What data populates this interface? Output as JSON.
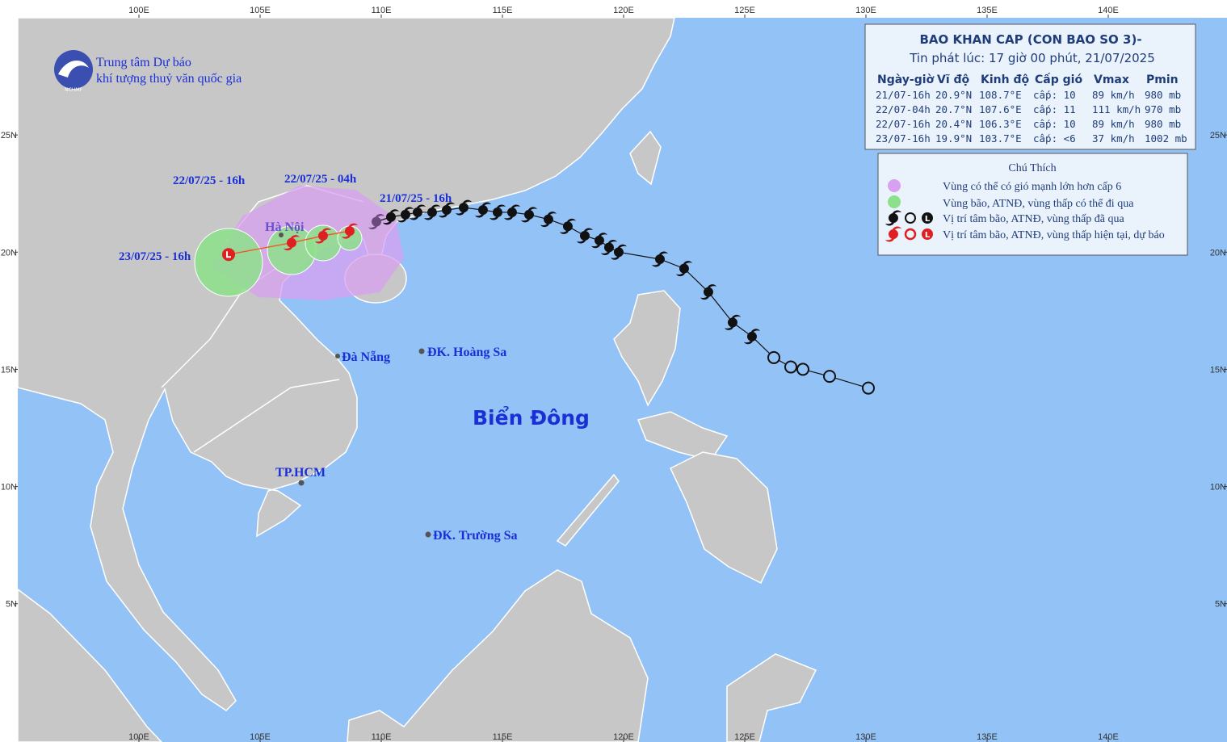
{
  "agency": {
    "name_line1": "Trung tâm Dự báo",
    "name_line2": "khí tượng thuỷ văn quốc gia",
    "logo_text": "NCHMF"
  },
  "header": {
    "title": "BAO KHAN CAP (CON BAO SO 3)-",
    "issued": "Tin phát lúc: 17 giờ 00 phút, 21/07/2025"
  },
  "table": {
    "columns": [
      "Ngày-giờ",
      "Vĩ độ",
      "Kinh độ",
      "Cấp gió",
      "Vmax",
      "Pmin"
    ],
    "rows": [
      [
        "21/07-16h",
        "20.9°N",
        "108.7°E",
        "cấp: 10",
        "89 km/h",
        "980 mb"
      ],
      [
        "22/07-04h",
        "20.7°N",
        "107.6°E",
        "cấp: 11",
        "111 km/h",
        "970 mb"
      ],
      [
        "22/07-16h",
        "20.4°N",
        "106.3°E",
        "cấp: 10",
        "89 km/h",
        "980 mb"
      ],
      [
        "23/07-16h",
        "19.9°N",
        "103.7°E",
        "cấp: <6",
        "37 km/h",
        "1002 mb"
      ]
    ]
  },
  "legend": {
    "title": "Chú Thích",
    "items": [
      "Vùng có thể có gió mạnh lớn hơn cấp 6",
      "Vùng bão, ATNĐ, vùng thấp có thể đi qua",
      "Vị trí tâm bão, ATNĐ, vùng thấp đã qua",
      "Vị trí tâm bão, ATNĐ, vùng thấp hiện tại, dự báo"
    ]
  },
  "map": {
    "xlim": [
      95,
      144.9
    ],
    "ylim": [
      -0.9,
      30
    ],
    "lon_ticks": [
      {
        "value": 100,
        "label": "100E"
      },
      {
        "value": 105,
        "label": "105E"
      },
      {
        "value": 110,
        "label": "110E"
      },
      {
        "value": 115,
        "label": "115E"
      },
      {
        "value": 120,
        "label": "120E"
      },
      {
        "value": 125,
        "label": "125E"
      },
      {
        "value": 130,
        "label": "130E"
      },
      {
        "value": 135,
        "label": "135E"
      },
      {
        "value": 140,
        "label": "140E"
      }
    ],
    "lat_ticks": [
      {
        "value": 5,
        "label": "5N"
      },
      {
        "value": 10,
        "label": "10N"
      },
      {
        "value": 15,
        "label": "15N"
      },
      {
        "value": 20,
        "label": "20N"
      },
      {
        "value": 25,
        "label": "25N"
      }
    ],
    "places": [
      "Hà Nội",
      "Đà Nẵng",
      "ĐK. Hoàng Sa",
      "TP.HCM",
      "ĐK. Trường Sa"
    ],
    "time_labels": [
      "22/07/25 - 16h",
      "22/07/25 - 04h",
      "21/07/25 - 16h",
      "23/07/25 - 16h"
    ],
    "sea_label": "Biển Đông",
    "past_low": [
      [
        130.1,
        14.2
      ],
      [
        128.5,
        14.7
      ],
      [
        127.4,
        15.0
      ],
      [
        126.9,
        15.1
      ],
      [
        126.2,
        15.5
      ]
    ],
    "past_storm": [
      [
        125.3,
        16.4
      ],
      [
        124.5,
        17.0
      ],
      [
        123.5,
        18.3
      ],
      [
        122.5,
        19.3
      ],
      [
        121.5,
        19.7
      ],
      [
        119.8,
        20.0
      ],
      [
        119.4,
        20.2
      ],
      [
        119.0,
        20.5
      ],
      [
        118.4,
        20.7
      ],
      [
        117.7,
        21.1
      ],
      [
        116.9,
        21.4
      ],
      [
        116.1,
        21.6
      ],
      [
        115.4,
        21.7
      ],
      [
        114.8,
        21.7
      ],
      [
        114.2,
        21.8
      ],
      [
        113.4,
        21.9
      ],
      [
        112.7,
        21.8
      ],
      [
        112.1,
        21.7
      ],
      [
        111.5,
        21.7
      ],
      [
        111.0,
        21.6
      ],
      [
        110.4,
        21.5
      ],
      [
        109.8,
        21.3
      ]
    ]
  }
}
